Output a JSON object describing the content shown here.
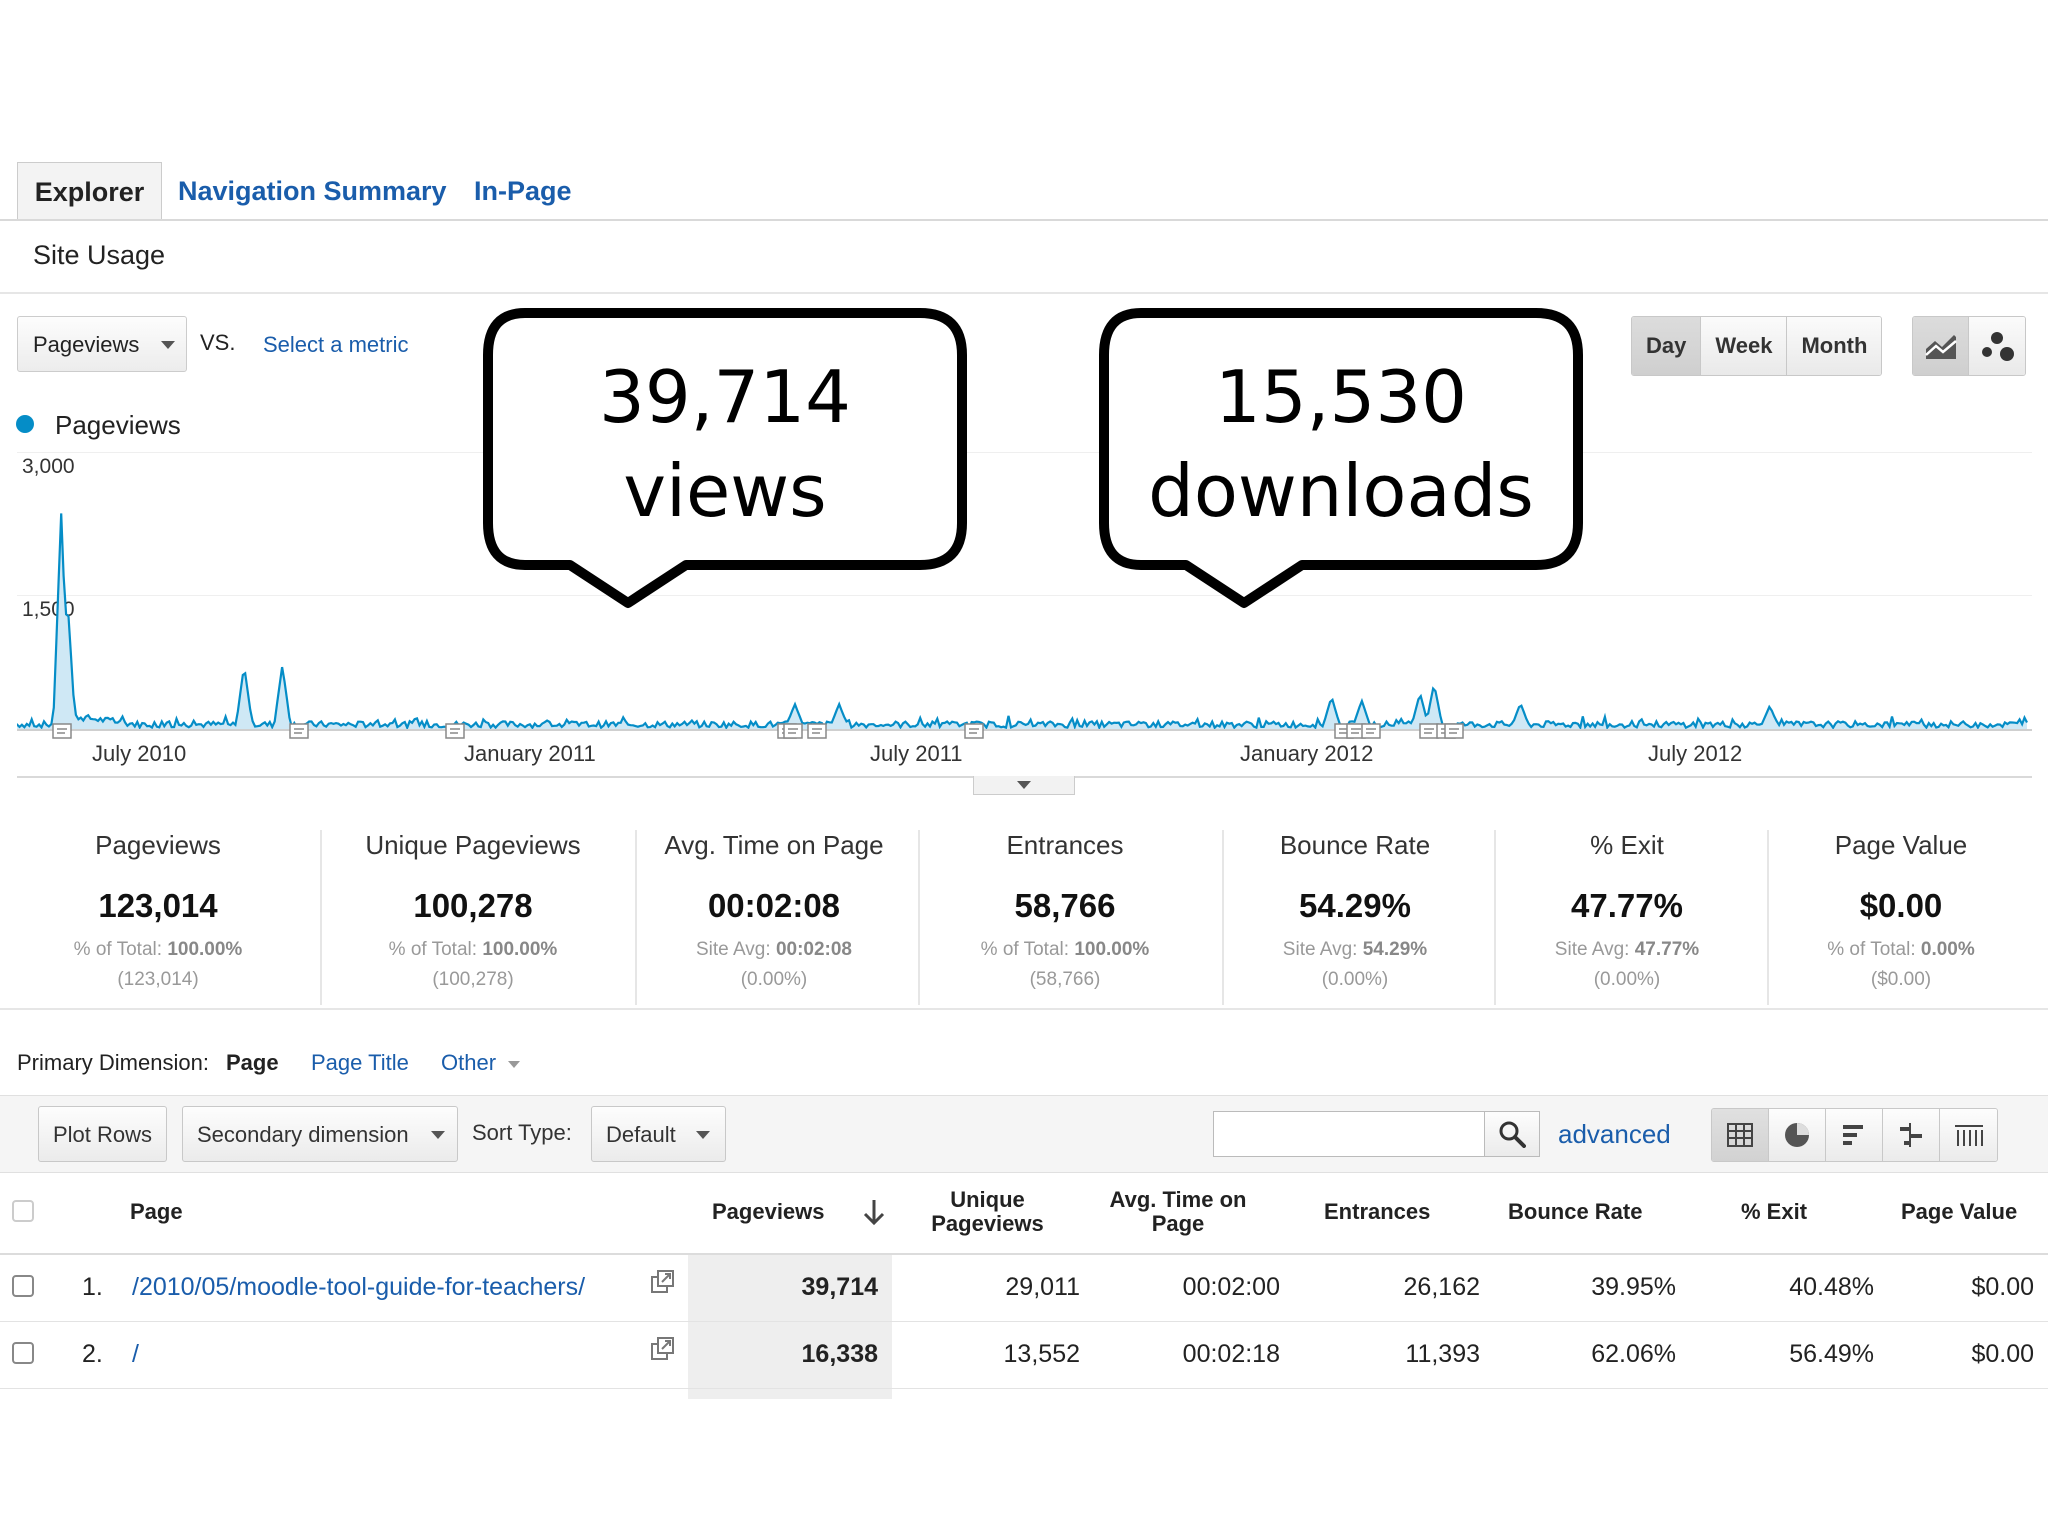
{
  "tabs": {
    "explorer": "Explorer",
    "navigation_summary": "Navigation Summary",
    "in_page": "In-Page"
  },
  "subtab": "Site Usage",
  "metric_selector": {
    "selected": "Pageviews",
    "vs": "VS.",
    "select_metric": "Select a metric"
  },
  "period": {
    "day": "Day",
    "week": "Week",
    "month": "Month",
    "active": "Day"
  },
  "chart_controls": {
    "line_icon": "line-chart-icon",
    "motion_icon": "motion-chart-icon"
  },
  "callouts": {
    "views_number": "39,714",
    "views_label": "views",
    "downloads_number": "15,530",
    "downloads_label": "downloads"
  },
  "chart_data": {
    "type": "area",
    "series": [
      {
        "name": "Pageviews",
        "color": "#058dc7"
      }
    ],
    "ylim": [
      0,
      3000
    ],
    "y_ticks": [
      "3,000",
      "1,500"
    ],
    "x_ticks": [
      "July 2010",
      "January 2011",
      "July 2011",
      "January 2012",
      "July 2012"
    ],
    "baseline": 60,
    "spikes": [
      {
        "at": 0.022,
        "value": 2350
      },
      {
        "at": 0.025,
        "value": 1450
      },
      {
        "at": 0.113,
        "value": 700
      },
      {
        "at": 0.132,
        "value": 700
      },
      {
        "at": 0.387,
        "value": 280
      },
      {
        "at": 0.409,
        "value": 280
      },
      {
        "at": 0.654,
        "value": 360
      },
      {
        "at": 0.669,
        "value": 320
      },
      {
        "at": 0.698,
        "value": 400
      },
      {
        "at": 0.705,
        "value": 500
      },
      {
        "at": 0.748,
        "value": 290
      },
      {
        "at": 0.872,
        "value": 260
      }
    ]
  },
  "summary": [
    {
      "label": "Pageviews",
      "value": "123,014",
      "sub_prefix": "% of Total:",
      "sub_value": "100.00%",
      "sub2": "(123,014)"
    },
    {
      "label": "Unique Pageviews",
      "value": "100,278",
      "sub_prefix": "% of Total:",
      "sub_value": "100.00%",
      "sub2": "(100,278)"
    },
    {
      "label": "Avg. Time on Page",
      "value": "00:02:08",
      "sub_prefix": "Site Avg:",
      "sub_value": "00:02:08",
      "sub2": "(0.00%)"
    },
    {
      "label": "Entrances",
      "value": "58,766",
      "sub_prefix": "% of Total:",
      "sub_value": "100.00%",
      "sub2": "(58,766)"
    },
    {
      "label": "Bounce Rate",
      "value": "54.29%",
      "sub_prefix": "Site Avg:",
      "sub_value": "54.29%",
      "sub2": "(0.00%)"
    },
    {
      "label": "% Exit",
      "value": "47.77%",
      "sub_prefix": "Site Avg:",
      "sub_value": "47.77%",
      "sub2": "(0.00%)"
    },
    {
      "label": "Page Value",
      "value": "$0.00",
      "sub_prefix": "% of Total:",
      "sub_value": "0.00%",
      "sub2": "($0.00)"
    }
  ],
  "primary_dimension": {
    "label": "Primary Dimension:",
    "active": "Page",
    "page_title": "Page Title",
    "other": "Other"
  },
  "toolbar": {
    "plot_rows": "Plot Rows",
    "secondary_dimension": "Secondary dimension",
    "sort_type_label": "Sort Type:",
    "sort_type_value": "Default",
    "search_placeholder": "",
    "advanced": "advanced"
  },
  "table": {
    "headers": {
      "page": "Page",
      "pageviews": "Pageviews",
      "unique_1": "Unique",
      "unique_2": "Pageviews",
      "avg_1": "Avg. Time on",
      "avg_2": "Page",
      "entrances": "Entrances",
      "bounce_rate": "Bounce Rate",
      "exit": "% Exit",
      "page_value": "Page Value"
    },
    "rows": [
      {
        "index": "1.",
        "page": "/2010/05/moodle-tool-guide-for-teachers/",
        "pageviews": "39,714",
        "unique_pageviews": "29,011",
        "avg_time": "00:02:00",
        "entrances": "26,162",
        "bounce_rate": "39.95%",
        "exit": "40.48%",
        "page_value": "$0.00"
      },
      {
        "index": "2.",
        "page": "/",
        "pageviews": "16,338",
        "unique_pageviews": "13,552",
        "avg_time": "00:02:18",
        "entrances": "11,393",
        "bounce_rate": "62.06%",
        "exit": "56.49%",
        "page_value": "$0.00"
      }
    ]
  }
}
